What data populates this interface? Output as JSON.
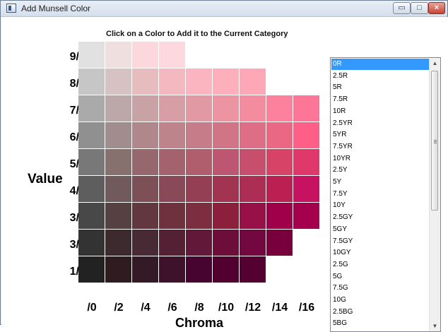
{
  "window": {
    "title": "Add Munsell Color",
    "minimize_glyph": "▭",
    "maximize_glyph": "□",
    "close_glyph": "×"
  },
  "heading": "Click on a Color to Add it to the Current Category",
  "axis": {
    "value_label": "Value",
    "chroma_label": "Chroma",
    "row_labels": [
      "9/",
      "8/",
      "7/",
      "6/",
      "5/",
      "4/",
      "3/",
      "3/",
      "1/"
    ],
    "col_labels": [
      "/0",
      "/2",
      "/4",
      "/6",
      "/8",
      "/10",
      "/12",
      "/14",
      "/16"
    ]
  },
  "swatches": [
    [
      "#e1e1e1",
      "#f0dfdf",
      "#fcd8dc",
      "#fdd8de"
    ],
    [
      "#c6c6c6",
      "#d7c2c3",
      "#e6bcbf",
      "#f4b8c0",
      "#fbb5c0",
      "#fdafbc",
      "#fea7b7"
    ],
    [
      "#aaaaaa",
      "#bca8a9",
      "#c9a2a6",
      "#d89ea5",
      "#e19aa4",
      "#ec94a1",
      "#f48ca0",
      "#fb819c",
      "#fe7697"
    ],
    [
      "#909090",
      "#a18d8e",
      "#b0888c",
      "#be848b",
      "#c77d89",
      "#d07486",
      "#dd6e85",
      "#ea6883",
      "#fd5f86"
    ],
    [
      "#787878",
      "#87716f",
      "#96686d",
      "#a4626e",
      "#b05e6d",
      "#bd5670",
      "#c84e6d",
      "#d64367",
      "#e1386c"
    ],
    [
      "#5e5e5e",
      "#705a5b",
      "#7c5056",
      "#8a4958",
      "#953f55",
      "#a13451",
      "#ad2e54",
      "#ba2152",
      "#c71262"
    ],
    [
      "#484848",
      "#554142",
      "#63373f",
      "#6f313e",
      "#7d2d40",
      "#8b1f3c",
      "#981048",
      "#a0004a",
      "#a4004d"
    ],
    [
      "#333333",
      "#3d2a2e",
      "#482a34",
      "#542033",
      "#621838",
      "#6c0e39",
      "#730740",
      "#77003d"
    ],
    [
      "#222222",
      "#2f1c20",
      "#331a26",
      "#3f122c",
      "#470430",
      "#51002f",
      "#540031"
    ]
  ],
  "hue_list": {
    "items": [
      "0R",
      "2.5R",
      "5R",
      "7.5R",
      "10R",
      "2.5YR",
      "5YR",
      "7.5YR",
      "10YR",
      "2.5Y",
      "5Y",
      "7.5Y",
      "10Y",
      "2.5GY",
      "5GY",
      "7.5GY",
      "10GY",
      "2.5G",
      "5G",
      "7.5G",
      "10G",
      "2.5BG",
      "5BG"
    ],
    "selected_index": 0,
    "scroll_up_glyph": "▲",
    "scroll_down_glyph": "▼",
    "scroll_position": 0.0
  }
}
